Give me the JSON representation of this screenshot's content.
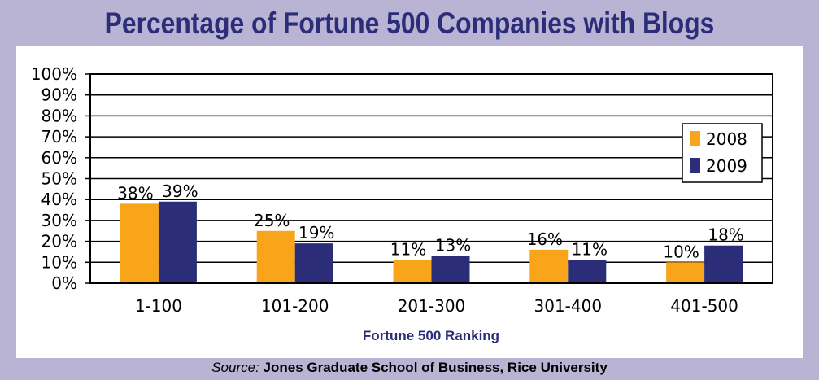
{
  "title": "Percentage of Fortune 500 Companies with Blogs",
  "source": {
    "lead": "Source:",
    "body": "Jones Graduate School of Business, Rice University"
  },
  "colors": {
    "series_2008": "#f9a51a",
    "series_2009": "#2b2d78",
    "background": "#b9b4d4",
    "title": "#2b2d78"
  },
  "chart_data": {
    "type": "bar",
    "categories": [
      "1-100",
      "101-200",
      "201-300",
      "301-400",
      "401-500"
    ],
    "series": [
      {
        "name": "2008",
        "values": [
          38,
          25,
          11,
          16,
          10
        ],
        "labels": [
          "38%",
          "25%",
          "11%",
          "16%",
          "10%"
        ]
      },
      {
        "name": "2009",
        "values": [
          39,
          19,
          13,
          11,
          18
        ],
        "labels": [
          "39%",
          "19%",
          "13%",
          "11%",
          "18%"
        ]
      }
    ],
    "xlabel": "Fortune 500 Ranking",
    "ylabel": "",
    "ylim": [
      0,
      100
    ],
    "yticks": [
      "0%",
      "10%",
      "20%",
      "30%",
      "40%",
      "50%",
      "60%",
      "70%",
      "80%",
      "90%",
      "100%"
    ],
    "grid": true,
    "legend": "right"
  }
}
